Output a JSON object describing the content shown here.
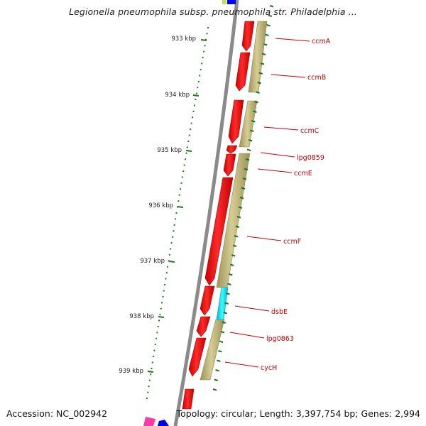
{
  "title": "Legionella pneumophila subsp. pneumophila str. Philadelphia ...",
  "footer": {
    "accession": "Accession: NC_002942",
    "topology": "Topology: circular; Length: 3,397,754 bp; Genes: 2,994"
  },
  "colors": {
    "cds": "#ee0000",
    "rna_feature": "#b8ae72",
    "cyan_feature": "#00e0f0",
    "backbone": "#8a8a8a",
    "ticks": "#1a7a1a",
    "label": "#c40000"
  },
  "ticks": [
    {
      "label": "933 kbp"
    },
    {
      "label": "934 kbp"
    },
    {
      "label": "935 kbp"
    },
    {
      "label": "936 kbp"
    },
    {
      "label": "937 kbp"
    },
    {
      "label": "938 kbp"
    },
    {
      "label": "939 kbp"
    }
  ],
  "genes": [
    {
      "label": "ccmA"
    },
    {
      "label": "ccmB"
    },
    {
      "label": "ccmC"
    },
    {
      "label": "lpg0859"
    },
    {
      "label": "ccmE"
    },
    {
      "label": "ccmF"
    },
    {
      "label": "dsbE"
    },
    {
      "label": "lpg0863"
    },
    {
      "label": "cycH"
    }
  ]
}
